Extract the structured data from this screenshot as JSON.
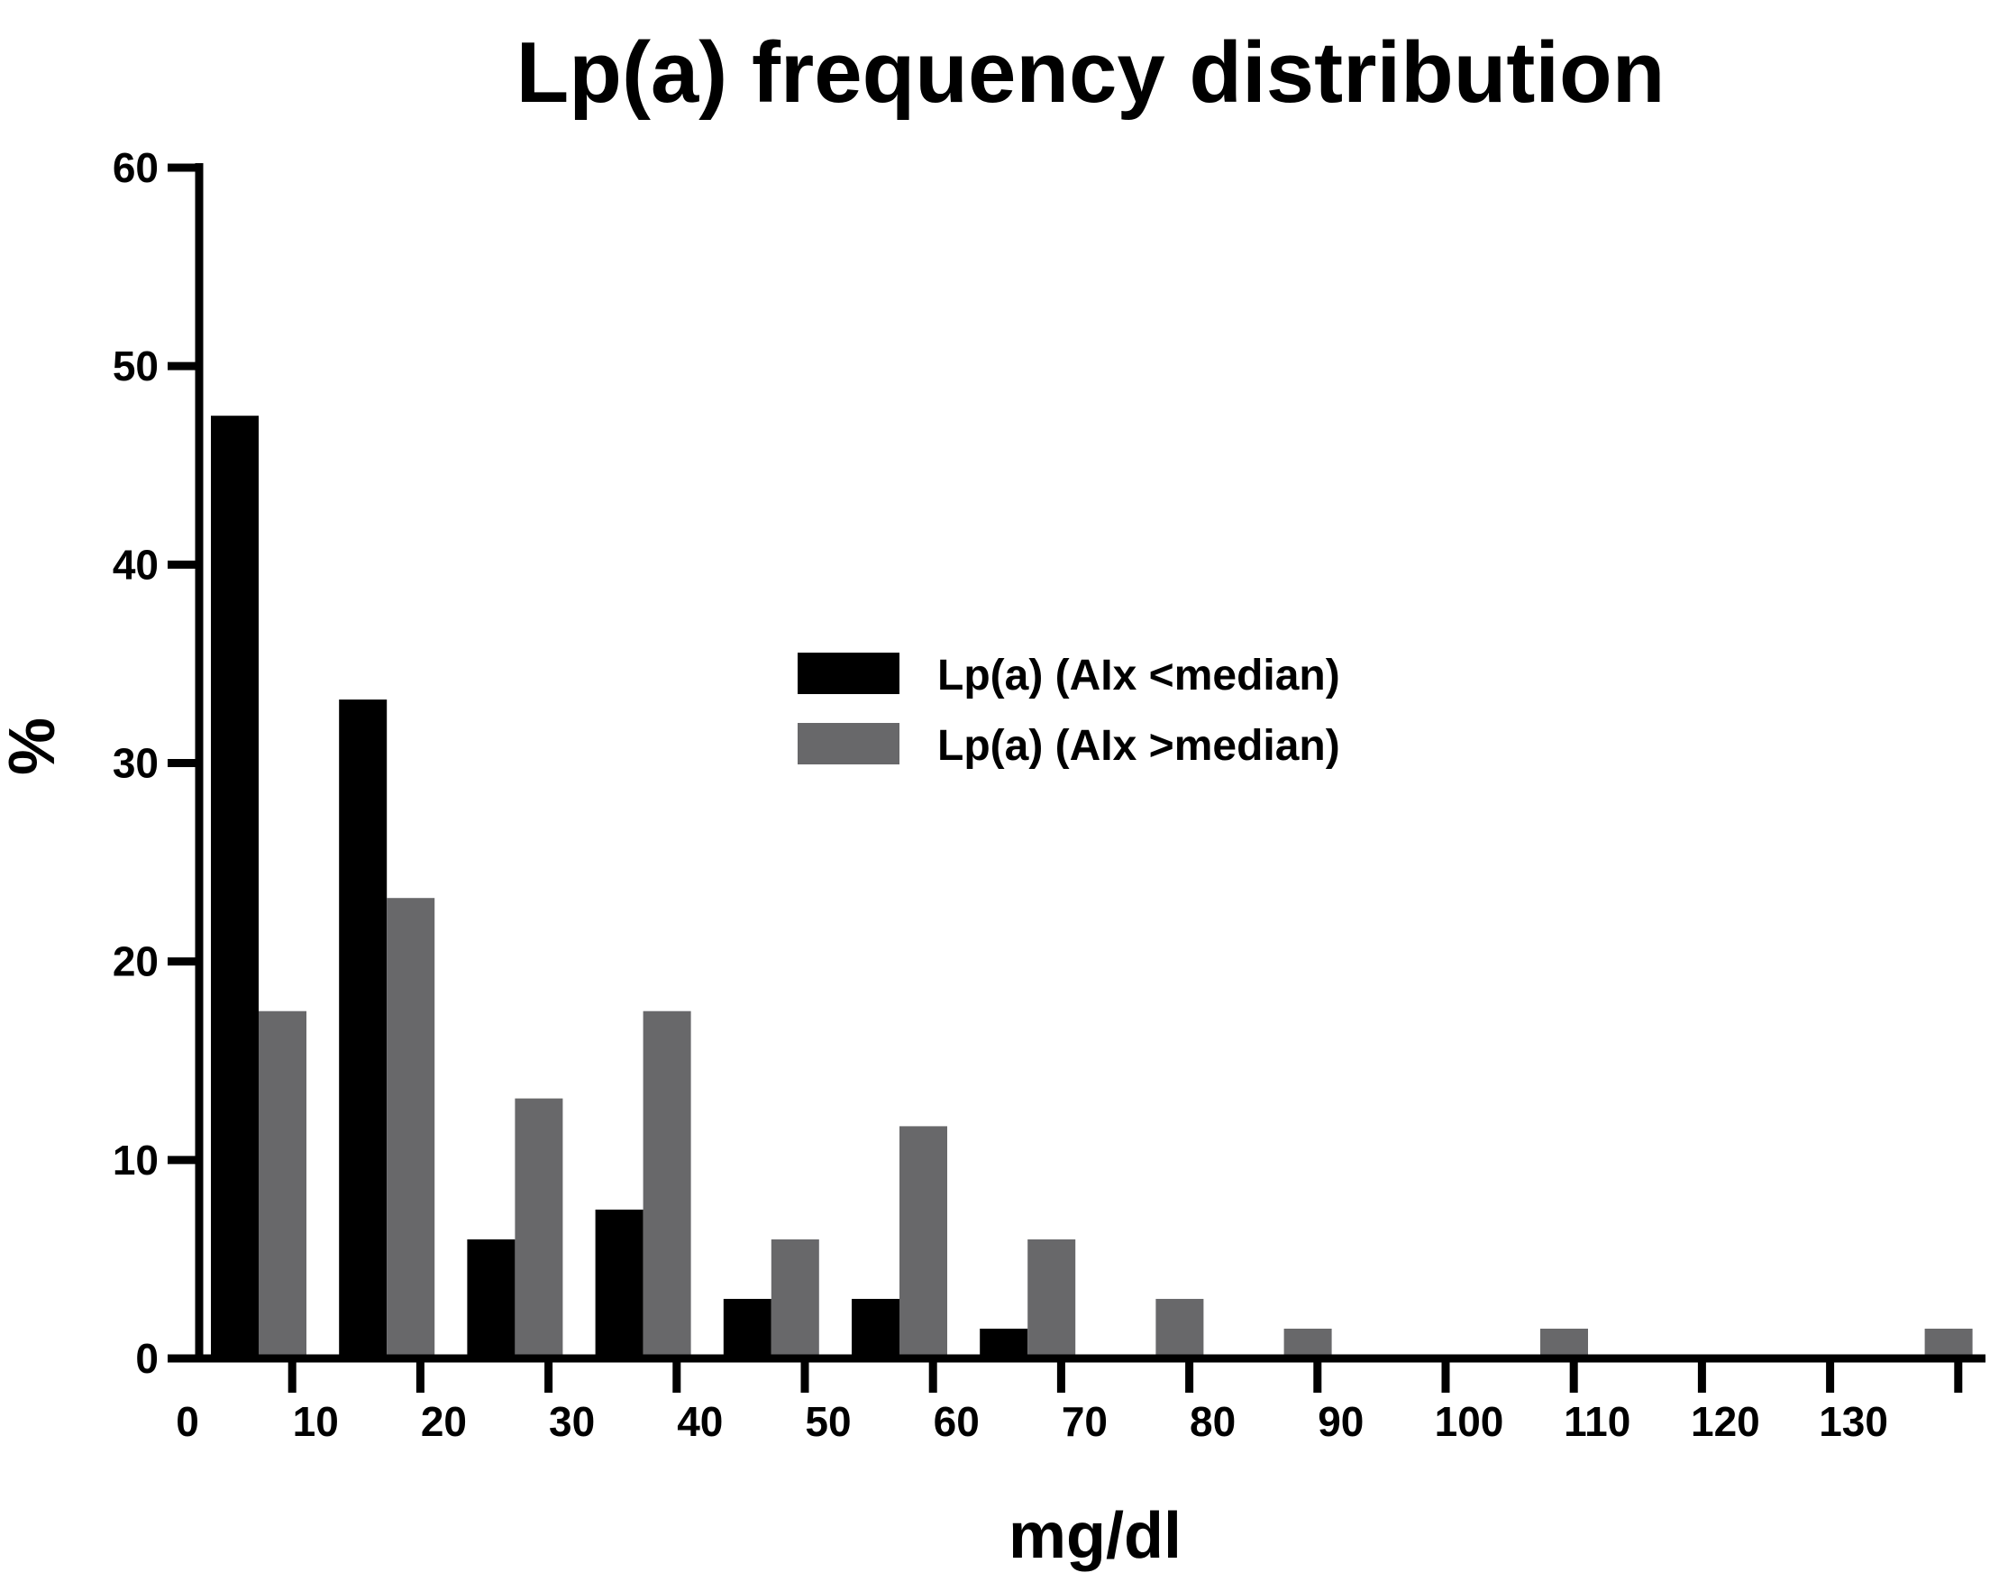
{
  "chart_data": {
    "type": "bar",
    "title": "Lp(a) frequency distribution",
    "xlabel": "mg/dl",
    "ylabel": "%",
    "ylim": [
      0,
      60
    ],
    "y_ticks": [
      "0",
      "10",
      "20",
      "30",
      "40",
      "50",
      "60"
    ],
    "x_ticks": [
      "0",
      "10",
      "20",
      "30",
      "40",
      "50",
      "60",
      "70",
      "80",
      "90",
      "100",
      "110",
      "120",
      "130"
    ],
    "categories": [
      "0",
      "10",
      "20",
      "30",
      "40",
      "50",
      "60",
      "70",
      "80",
      "90",
      "100",
      "110",
      "120",
      "130"
    ],
    "grid": false,
    "legend_position": "center-right",
    "series": [
      {
        "name": "Lp(a) (AIx <median)",
        "color": "#000000",
        "values": [
          47.5,
          33.2,
          6.0,
          7.5,
          3.0,
          3.0,
          1.5,
          0,
          0,
          0,
          0,
          0,
          0,
          0
        ]
      },
      {
        "name": "Lp(a) (AIx >median)",
        "color": "#68686a",
        "values": [
          17.5,
          23.2,
          13.1,
          17.5,
          6.0,
          11.7,
          6.0,
          3.0,
          1.5,
          0,
          1.5,
          0,
          0,
          1.5
        ]
      }
    ]
  }
}
